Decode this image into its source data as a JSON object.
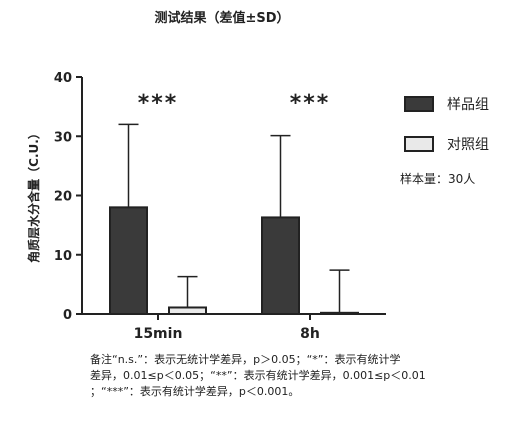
{
  "chart_data": {
    "type": "bar",
    "title": "测试结果（差值±SD）",
    "ylabel": "角质层水分含量（C.U.）",
    "xlabel": "",
    "ylim": [
      0,
      40
    ],
    "yticks": [
      0,
      10,
      20,
      30,
      40
    ],
    "categories": [
      "15min",
      "8h"
    ],
    "series": [
      {
        "name": "样品组",
        "values": [
          18,
          16.3
        ],
        "sd": [
          14,
          13.8
        ],
        "color": "#3a3a3a"
      },
      {
        "name": "对照组",
        "values": [
          1.1,
          0.2
        ],
        "sd": [
          5.2,
          7.2
        ],
        "color": "#e9e9e9"
      }
    ],
    "significance": [
      "***",
      "***"
    ],
    "legend_position": "right",
    "sample_size": "样本量：30人",
    "grid": false
  },
  "note": {
    "line1": "备注“n.s.”：表示无统计学差异，p＞0.05；“*”：表示有统计学",
    "line2": "差异，0.01≤p＜0.05；“**”：表示有统计学差异，0.001≤p＜0.01",
    "line3": "；“***”：表示有统计学差异，p＜0.001。"
  }
}
